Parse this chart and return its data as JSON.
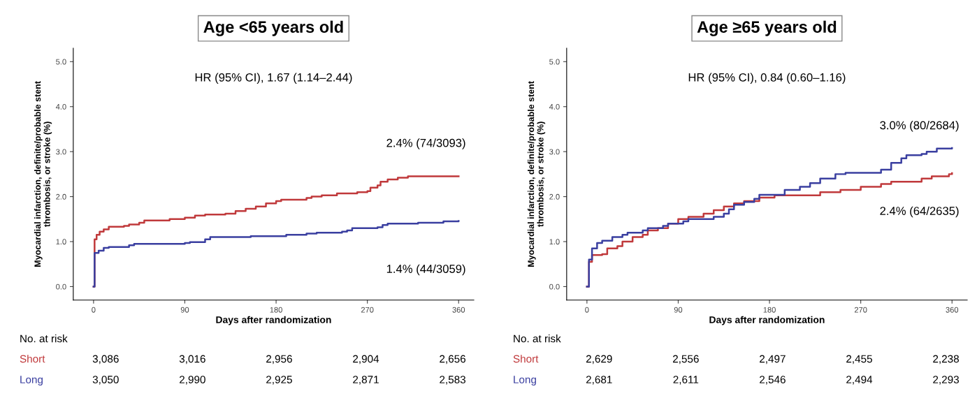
{
  "chart_data": [
    {
      "type": "step",
      "title": "Age <65 years old",
      "xlabel": "Days after randomization",
      "ylabel": "Myocardial infarction, definite/probable stent\nthrombosis, or stroke (%)",
      "xlim": [
        -20,
        375
      ],
      "ylim": [
        -0.3,
        5.3
      ],
      "xticks": [
        0,
        90,
        180,
        270,
        360
      ],
      "yticks": [
        {
          "value": 0,
          "label": "0.0"
        },
        {
          "value": 1,
          "label": "1.0"
        },
        {
          "value": 2,
          "label": "2.0"
        },
        {
          "value": 3,
          "label": "3.0"
        },
        {
          "value": 4,
          "label": "4.0"
        },
        {
          "value": 5,
          "label": "5.0"
        }
      ],
      "grid": false,
      "legend": false,
      "series": [
        {
          "name": "Short",
          "color": "#c0393b",
          "x": [
            0,
            1,
            3,
            6,
            10,
            15,
            30,
            35,
            45,
            50,
            70,
            75,
            90,
            100,
            110,
            130,
            140,
            150,
            160,
            170,
            180,
            185,
            210,
            215,
            225,
            240,
            260,
            270,
            273,
            280,
            283,
            290,
            300,
            310,
            360
          ],
          "values": [
            0,
            1.05,
            1.15,
            1.22,
            1.27,
            1.33,
            1.35,
            1.38,
            1.42,
            1.47,
            1.47,
            1.5,
            1.53,
            1.58,
            1.6,
            1.62,
            1.68,
            1.73,
            1.78,
            1.85,
            1.9,
            1.93,
            1.97,
            2.0,
            2.03,
            2.07,
            2.1,
            2.12,
            2.2,
            2.25,
            2.33,
            2.38,
            2.42,
            2.45,
            2.45
          ]
        },
        {
          "name": "Long",
          "color": "#3a3fa0",
          "x": [
            0,
            1,
            5,
            10,
            15,
            35,
            40,
            90,
            95,
            110,
            115,
            155,
            190,
            210,
            220,
            245,
            250,
            255,
            280,
            285,
            290,
            320,
            345,
            360
          ],
          "values": [
            0,
            0.75,
            0.8,
            0.86,
            0.88,
            0.92,
            0.95,
            0.97,
            0.99,
            1.05,
            1.1,
            1.12,
            1.15,
            1.18,
            1.2,
            1.22,
            1.25,
            1.3,
            1.32,
            1.37,
            1.4,
            1.42,
            1.45,
            1.46
          ]
        }
      ],
      "annotations": [
        "HR (95% CI), 1.67 (1.14–2.44)",
        "2.4% (74/3093)",
        "1.4% (44/3059)",
        "No. at risk",
        "3,086",
        "3,016",
        "2,956",
        "2,904",
        "2,656",
        "3,050",
        "2,990",
        "2,925",
        "2,871",
        "2,583"
      ]
    },
    {
      "type": "step",
      "title": "Age ≥65 years old",
      "xlabel": "Days after randomization",
      "ylabel": "Myocardial infarction, definite/probable stent\nthrombosis, or stroke (%)",
      "xlim": [
        -20,
        375
      ],
      "ylim": [
        -0.3,
        5.3
      ],
      "xticks": [
        0,
        90,
        180,
        270,
        360
      ],
      "yticks": [
        {
          "value": 0,
          "label": "0.0"
        },
        {
          "value": 1,
          "label": "1.0"
        },
        {
          "value": 2,
          "label": "2.0"
        },
        {
          "value": 3,
          "label": "3.0"
        },
        {
          "value": 4,
          "label": "4.0"
        },
        {
          "value": 5,
          "label": "5.0"
        }
      ],
      "grid": false,
      "legend": false,
      "series": [
        {
          "name": "Short",
          "color": "#c0393b",
          "x": [
            0,
            2,
            5,
            15,
            20,
            30,
            35,
            45,
            55,
            60,
            70,
            80,
            90,
            100,
            115,
            125,
            135,
            145,
            155,
            170,
            185,
            230,
            250,
            270,
            290,
            300,
            330,
            340,
            357,
            360
          ],
          "values": [
            0,
            0.55,
            0.7,
            0.72,
            0.85,
            0.9,
            1.0,
            1.1,
            1.15,
            1.25,
            1.3,
            1.4,
            1.5,
            1.55,
            1.62,
            1.7,
            1.78,
            1.85,
            1.9,
            1.98,
            2.03,
            2.1,
            2.15,
            2.22,
            2.28,
            2.33,
            2.4,
            2.45,
            2.5,
            2.52
          ]
        },
        {
          "name": "Long",
          "color": "#3a3fa0",
          "x": [
            0,
            2,
            5,
            10,
            15,
            25,
            35,
            40,
            55,
            60,
            75,
            80,
            95,
            100,
            120,
            125,
            135,
            140,
            145,
            155,
            165,
            170,
            185,
            195,
            210,
            220,
            230,
            245,
            255,
            285,
            290,
            300,
            310,
            315,
            330,
            335,
            345,
            360
          ],
          "values": [
            0,
            0.6,
            0.85,
            0.97,
            1.02,
            1.1,
            1.15,
            1.2,
            1.25,
            1.3,
            1.35,
            1.4,
            1.45,
            1.5,
            1.5,
            1.55,
            1.62,
            1.72,
            1.82,
            1.88,
            1.95,
            2.04,
            2.04,
            2.15,
            2.22,
            2.3,
            2.4,
            2.5,
            2.53,
            2.53,
            2.6,
            2.75,
            2.85,
            2.92,
            2.95,
            3.0,
            3.07,
            3.08
          ]
        }
      ],
      "annotations": [
        "HR (95% CI), 0.84 (0.60–1.16)",
        "3.0% (80/2684)",
        "2.4% (64/2635)",
        "No. at risk",
        "2,629",
        "2,556",
        "2,497",
        "2,455",
        "2,238",
        "2,681",
        "2,611",
        "2,546",
        "2,494",
        "2,293"
      ]
    }
  ]
}
